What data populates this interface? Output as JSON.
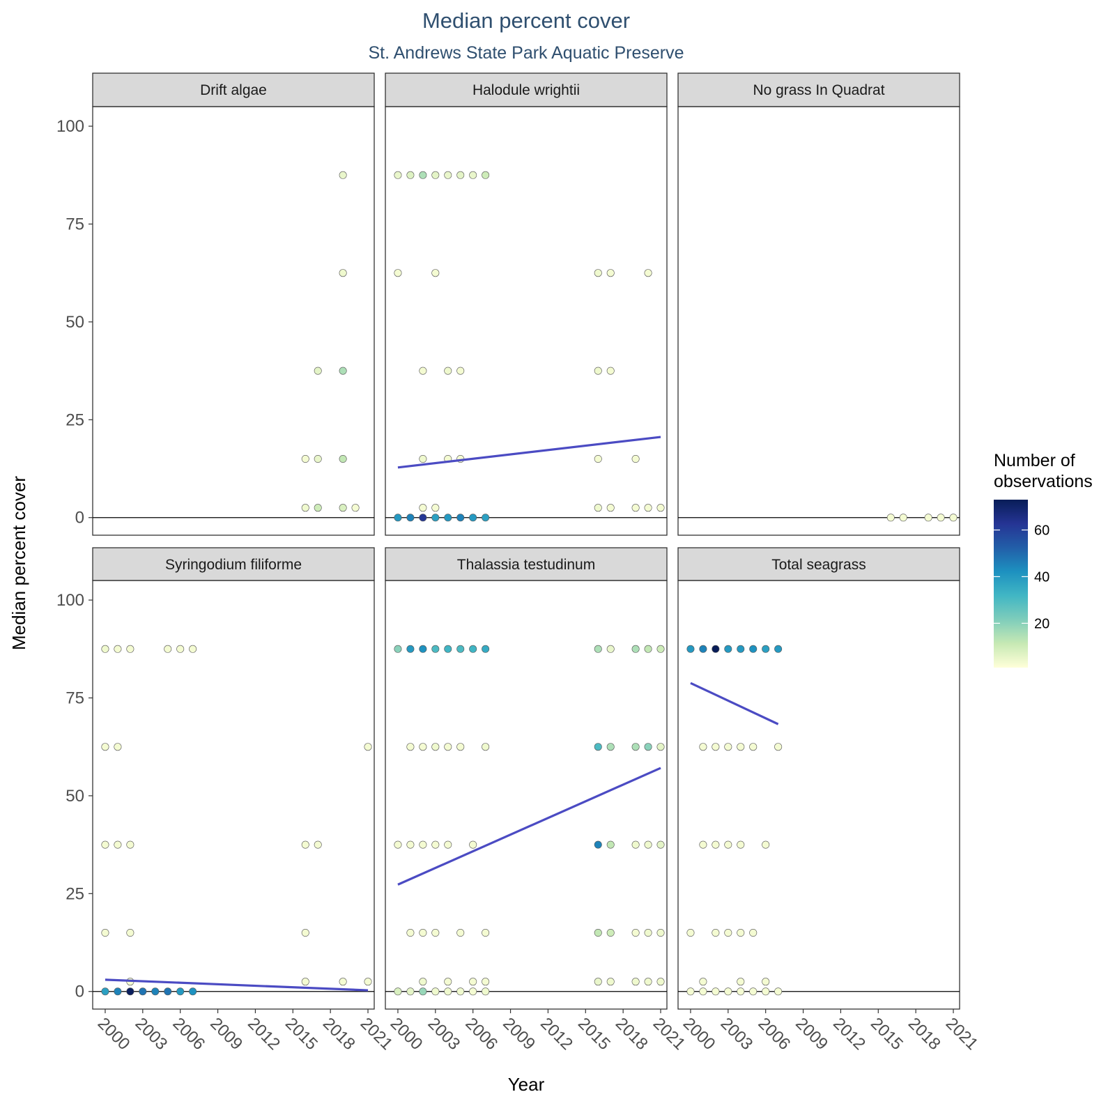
{
  "chart_data": {
    "type": "scatter",
    "title": "Median percent cover",
    "subtitle": "St. Andrews State Park Aquatic Preserve",
    "xlabel": "Year",
    "ylabel": "Median percent cover",
    "xlim": [
      1999,
      2021.5
    ],
    "ylim": [
      -4.5,
      105
    ],
    "x_ticks": [
      "2000",
      "2003",
      "2006",
      "2009",
      "2012",
      "2015",
      "2018",
      "2021"
    ],
    "y_ticks": [
      "0",
      "25",
      "50",
      "75",
      "100"
    ],
    "grid": false,
    "legend": {
      "title_line1": "Number of",
      "title_line2": "observations",
      "position": "right",
      "ticks": [
        "20",
        "40",
        "60"
      ],
      "range": [
        1,
        73
      ],
      "palette": [
        "#ffffd9",
        "#c7e9b4",
        "#7fcdbb",
        "#41b6c4",
        "#1d91c0",
        "#225ea8",
        "#253494",
        "#081d58"
      ]
    },
    "panels": [
      {
        "name": "Drift algae",
        "points": [
          [
            2016,
            15,
            3
          ],
          [
            2016,
            2.5,
            4
          ],
          [
            2017,
            37.5,
            6
          ],
          [
            2017,
            15,
            5
          ],
          [
            2017,
            2.5,
            10
          ],
          [
            2019,
            87.5,
            5
          ],
          [
            2019,
            62.5,
            4
          ],
          [
            2019,
            37.5,
            15
          ],
          [
            2019,
            15,
            12
          ],
          [
            2019,
            2.5,
            8
          ],
          [
            2020,
            2.5,
            3
          ]
        ],
        "trend": null
      },
      {
        "name": "Halodule wrightii",
        "points": [
          [
            2000,
            87.5,
            5
          ],
          [
            2001,
            87.5,
            7
          ],
          [
            2002,
            87.5,
            15
          ],
          [
            2003,
            87.5,
            6
          ],
          [
            2004,
            87.5,
            5
          ],
          [
            2005,
            87.5,
            6
          ],
          [
            2006,
            87.5,
            5
          ],
          [
            2007,
            87.5,
            10
          ],
          [
            2000,
            62.5,
            3
          ],
          [
            2003,
            62.5,
            3
          ],
          [
            2002,
            37.5,
            3
          ],
          [
            2004,
            37.5,
            4
          ],
          [
            2005,
            37.5,
            3
          ],
          [
            2002,
            15,
            4
          ],
          [
            2004,
            15,
            3
          ],
          [
            2005,
            15,
            3
          ],
          [
            2002,
            2.5,
            3
          ],
          [
            2003,
            2.5,
            3
          ],
          [
            2000,
            0,
            40
          ],
          [
            2001,
            0,
            45
          ],
          [
            2002,
            0,
            62
          ],
          [
            2003,
            0,
            38
          ],
          [
            2004,
            0,
            40
          ],
          [
            2005,
            0,
            45
          ],
          [
            2006,
            0,
            40
          ],
          [
            2007,
            0,
            38
          ],
          [
            2016,
            62.5,
            4
          ],
          [
            2017,
            62.5,
            3
          ],
          [
            2020,
            62.5,
            3
          ],
          [
            2016,
            37.5,
            4
          ],
          [
            2017,
            37.5,
            3
          ],
          [
            2016,
            15,
            3
          ],
          [
            2019,
            15,
            3
          ],
          [
            2016,
            2.5,
            4
          ],
          [
            2017,
            2.5,
            3
          ],
          [
            2019,
            2.5,
            3
          ],
          [
            2020,
            2.5,
            3
          ],
          [
            2021,
            2.5,
            3
          ]
        ],
        "trend": [
          [
            2000,
            12.8
          ],
          [
            2021,
            20.6
          ]
        ]
      },
      {
        "name": "No grass In Quadrat",
        "points": [
          [
            2016,
            0,
            3
          ],
          [
            2017,
            0,
            3
          ],
          [
            2019,
            0,
            3
          ],
          [
            2020,
            0,
            3
          ],
          [
            2021,
            0,
            3
          ]
        ],
        "trend": null
      },
      {
        "name": "Syringodium filiforme",
        "points": [
          [
            2000,
            87.5,
            4
          ],
          [
            2001,
            87.5,
            3
          ],
          [
            2002,
            87.5,
            3
          ],
          [
            2005,
            87.5,
            3
          ],
          [
            2006,
            87.5,
            3
          ],
          [
            2007,
            87.5,
            3
          ],
          [
            2000,
            62.5,
            3
          ],
          [
            2001,
            62.5,
            3
          ],
          [
            2000,
            37.5,
            3
          ],
          [
            2001,
            37.5,
            3
          ],
          [
            2002,
            37.5,
            3
          ],
          [
            2000,
            15,
            3
          ],
          [
            2002,
            15,
            3
          ],
          [
            2002,
            2.5,
            3
          ],
          [
            2000,
            0,
            38
          ],
          [
            2001,
            0,
            45
          ],
          [
            2002,
            0,
            72
          ],
          [
            2003,
            0,
            48
          ],
          [
            2004,
            0,
            45
          ],
          [
            2005,
            0,
            48
          ],
          [
            2006,
            0,
            40
          ],
          [
            2007,
            0,
            42
          ],
          [
            2016,
            37.5,
            3
          ],
          [
            2017,
            37.5,
            3
          ],
          [
            2016,
            15,
            3
          ],
          [
            2016,
            2.5,
            3
          ],
          [
            2019,
            2.5,
            3
          ],
          [
            2021,
            2.5,
            3
          ],
          [
            2021,
            62.5,
            3
          ]
        ],
        "trend": [
          [
            2000,
            3.0
          ],
          [
            2021,
            0.3
          ]
        ]
      },
      {
        "name": "Thalassia testudinum",
        "points": [
          [
            2000,
            87.5,
            20
          ],
          [
            2001,
            87.5,
            40
          ],
          [
            2002,
            87.5,
            42
          ],
          [
            2003,
            87.5,
            30
          ],
          [
            2004,
            87.5,
            32
          ],
          [
            2005,
            87.5,
            30
          ],
          [
            2006,
            87.5,
            32
          ],
          [
            2007,
            87.5,
            35
          ],
          [
            2001,
            62.5,
            3
          ],
          [
            2002,
            62.5,
            3
          ],
          [
            2003,
            62.5,
            4
          ],
          [
            2004,
            62.5,
            3
          ],
          [
            2005,
            62.5,
            3
          ],
          [
            2007,
            62.5,
            4
          ],
          [
            2000,
            37.5,
            3
          ],
          [
            2001,
            37.5,
            3
          ],
          [
            2002,
            37.5,
            3
          ],
          [
            2003,
            37.5,
            3
          ],
          [
            2004,
            37.5,
            3
          ],
          [
            2006,
            37.5,
            3
          ],
          [
            2001,
            15,
            3
          ],
          [
            2002,
            15,
            3
          ],
          [
            2003,
            15,
            3
          ],
          [
            2005,
            15,
            3
          ],
          [
            2007,
            15,
            3
          ],
          [
            2002,
            2.5,
            4
          ],
          [
            2004,
            2.5,
            3
          ],
          [
            2006,
            2.5,
            3
          ],
          [
            2007,
            2.5,
            3
          ],
          [
            2000,
            0,
            8
          ],
          [
            2001,
            0,
            6
          ],
          [
            2002,
            0,
            18
          ],
          [
            2003,
            0,
            4
          ],
          [
            2004,
            0,
            4
          ],
          [
            2005,
            0,
            4
          ],
          [
            2006,
            0,
            3
          ],
          [
            2007,
            0,
            4
          ],
          [
            2016,
            87.5,
            15
          ],
          [
            2017,
            87.5,
            5
          ],
          [
            2019,
            87.5,
            15
          ],
          [
            2020,
            87.5,
            12
          ],
          [
            2021,
            87.5,
            10
          ],
          [
            2016,
            62.5,
            30
          ],
          [
            2017,
            62.5,
            15
          ],
          [
            2019,
            62.5,
            15
          ],
          [
            2020,
            62.5,
            20
          ],
          [
            2021,
            62.5,
            6
          ],
          [
            2016,
            37.5,
            45
          ],
          [
            2017,
            37.5,
            12
          ],
          [
            2019,
            37.5,
            4
          ],
          [
            2020,
            37.5,
            4
          ],
          [
            2021,
            37.5,
            6
          ],
          [
            2016,
            15,
            12
          ],
          [
            2017,
            15,
            10
          ],
          [
            2019,
            15,
            3
          ],
          [
            2020,
            15,
            4
          ],
          [
            2021,
            15,
            4
          ],
          [
            2016,
            2.5,
            5
          ],
          [
            2017,
            2.5,
            4
          ],
          [
            2019,
            2.5,
            4
          ],
          [
            2020,
            2.5,
            4
          ],
          [
            2021,
            2.5,
            4
          ]
        ],
        "trend": [
          [
            2000,
            27.3
          ],
          [
            2021,
            57.1
          ]
        ]
      },
      {
        "name": "Total seagrass",
        "points": [
          [
            2000,
            87.5,
            40
          ],
          [
            2001,
            87.5,
            45
          ],
          [
            2002,
            87.5,
            73
          ],
          [
            2003,
            87.5,
            40
          ],
          [
            2004,
            87.5,
            40
          ],
          [
            2005,
            87.5,
            42
          ],
          [
            2006,
            87.5,
            38
          ],
          [
            2007,
            87.5,
            40
          ],
          [
            2001,
            62.5,
            3
          ],
          [
            2002,
            62.5,
            3
          ],
          [
            2003,
            62.5,
            3
          ],
          [
            2004,
            62.5,
            3
          ],
          [
            2005,
            62.5,
            3
          ],
          [
            2007,
            62.5,
            3
          ],
          [
            2001,
            37.5,
            3
          ],
          [
            2002,
            37.5,
            3
          ],
          [
            2003,
            37.5,
            3
          ],
          [
            2004,
            37.5,
            3
          ],
          [
            2006,
            37.5,
            3
          ],
          [
            2000,
            15,
            3
          ],
          [
            2002,
            15,
            3
          ],
          [
            2003,
            15,
            3
          ],
          [
            2004,
            15,
            3
          ],
          [
            2005,
            15,
            3
          ],
          [
            2001,
            2.5,
            3
          ],
          [
            2004,
            2.5,
            3
          ],
          [
            2006,
            2.5,
            3
          ],
          [
            2000,
            0,
            3
          ],
          [
            2001,
            0,
            3
          ],
          [
            2002,
            0,
            3
          ],
          [
            2003,
            0,
            3
          ],
          [
            2004,
            0,
            3
          ],
          [
            2005,
            0,
            3
          ],
          [
            2006,
            0,
            3
          ],
          [
            2007,
            0,
            3
          ]
        ],
        "trend": [
          [
            2000,
            78.8
          ],
          [
            2007,
            68.3
          ]
        ]
      }
    ],
    "trend_color": "#4b4bc3",
    "reference_line_y": 0
  }
}
